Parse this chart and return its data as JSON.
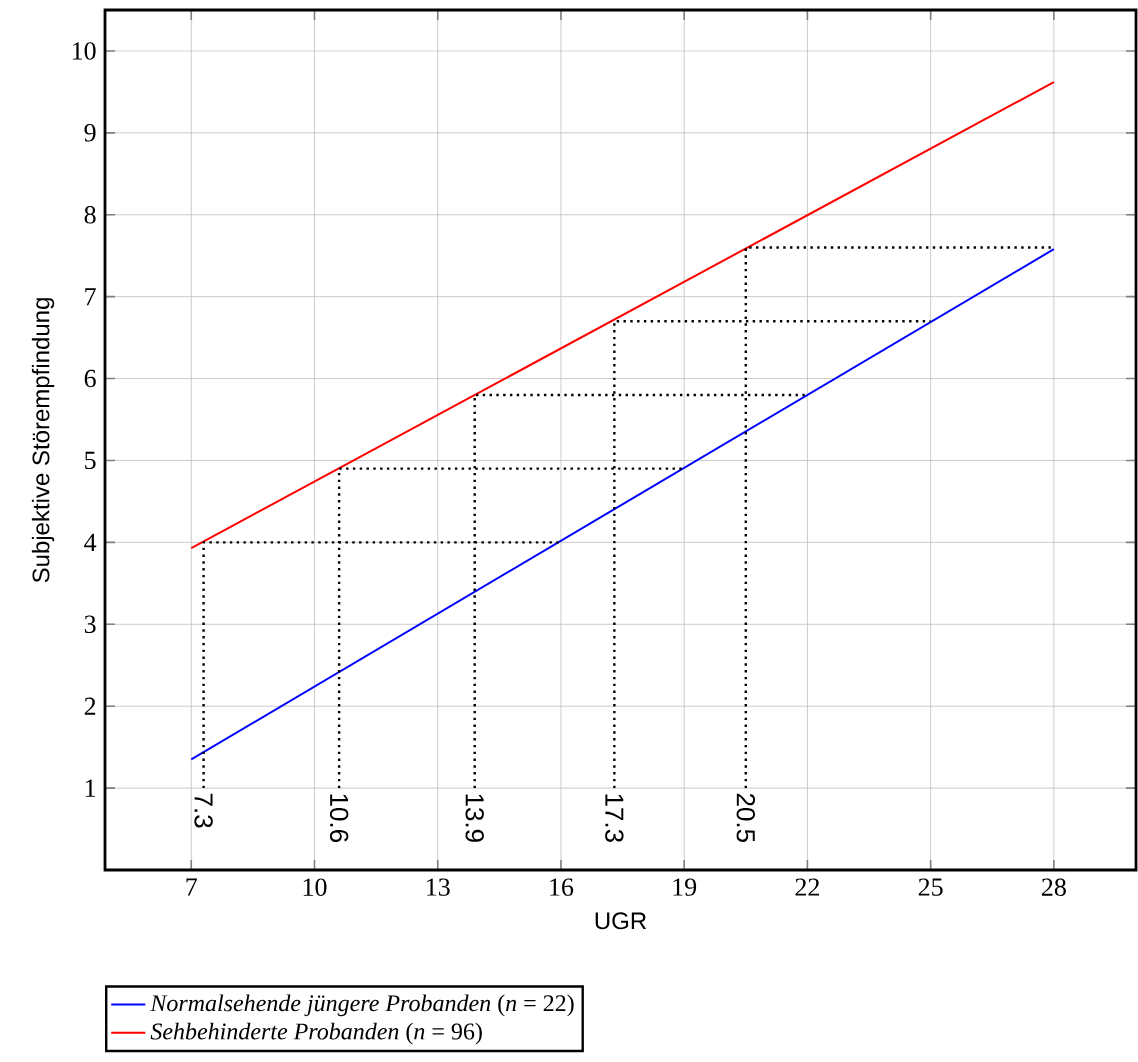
{
  "chart_data": {
    "type": "line",
    "xlabel": "UGR",
    "ylabel": "Subjektive Störempfindung",
    "xlim": [
      4.9,
      30
    ],
    "ylim": [
      0,
      10.5
    ],
    "xticks": [
      7,
      10,
      13,
      16,
      19,
      22,
      25,
      28
    ],
    "yticks": [
      1,
      2,
      3,
      4,
      5,
      6,
      7,
      8,
      9,
      10
    ],
    "grid": true,
    "legend": "bottom",
    "series": [
      {
        "name": "*Normalsehende jüngere Probanden* (*n* = 22)",
        "color": "#0000ff",
        "x": [
          7,
          28
        ],
        "values": [
          1.35,
          7.58
        ],
        "line_style": "solid"
      },
      {
        "name": "*Sehbehinderte Probanden* (*n* = 96)",
        "color": "#ff0000",
        "x": [
          7,
          28
        ],
        "values": [
          3.93,
          9.62
        ],
        "line_style": "solid"
      },
      {
        "color": "#000000",
        "x": [
          7.3,
          7.3,
          16
        ],
        "values": [
          1,
          4,
          4
        ],
        "line_style": "dotted"
      },
      {
        "color": "#000000",
        "x": [
          10.6,
          10.6,
          19
        ],
        "values": [
          1,
          4.9,
          4.9
        ],
        "line_style": "dotted"
      },
      {
        "color": "#000000",
        "x": [
          13.9,
          13.9,
          22
        ],
        "values": [
          1,
          5.8,
          5.8
        ],
        "line_style": "dotted"
      },
      {
        "color": "#000000",
        "x": [
          17.3,
          17.3,
          25
        ],
        "values": [
          1,
          6.7,
          6.7
        ],
        "line_style": "dotted"
      },
      {
        "color": "#000000",
        "x": [
          20.5,
          20.5,
          28
        ],
        "values": [
          1,
          7.6,
          7.6
        ],
        "line_style": "dotted"
      }
    ],
    "annotations": [
      {
        "text": "7.3",
        "x": 7.3,
        "y": 1
      },
      {
        "text": "10.6",
        "x": 10.6,
        "y": 1
      },
      {
        "text": "13.9",
        "x": 13.9,
        "y": 1
      },
      {
        "text": "17.3",
        "x": 17.3,
        "y": 1
      },
      {
        "text": "20.5",
        "x": 20.5,
        "y": 1
      }
    ]
  }
}
